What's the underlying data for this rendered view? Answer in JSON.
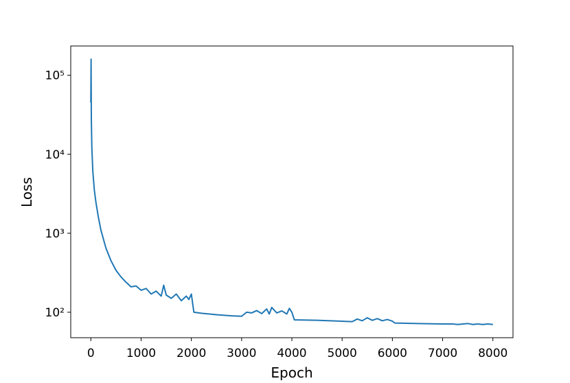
{
  "chart_data": {
    "type": "line",
    "xlabel": "Epoch",
    "ylabel": "Loss",
    "yscale": "log",
    "xlim": [
      -400,
      8400
    ],
    "xticks": [
      0,
      1000,
      2000,
      3000,
      4000,
      5000,
      6000,
      7000,
      8000
    ],
    "ylim": [
      47.6,
      235000
    ],
    "yticks": [
      {
        "value": 100,
        "label": "10²"
      },
      {
        "value": 1000,
        "label": "10³"
      },
      {
        "value": 10000,
        "label": "10⁴"
      },
      {
        "value": 100000,
        "label": "10⁵"
      }
    ],
    "x": [
      0,
      5,
      10,
      20,
      40,
      70,
      100,
      150,
      200,
      300,
      400,
      500,
      600,
      700,
      800,
      900,
      1000,
      1100,
      1200,
      1300,
      1400,
      1450,
      1500,
      1600,
      1700,
      1800,
      1900,
      1950,
      2000,
      2050,
      2200,
      2500,
      2800,
      3000,
      3100,
      3200,
      3300,
      3400,
      3500,
      3550,
      3600,
      3700,
      3800,
      3900,
      3950,
      4000,
      4050,
      4500,
      5000,
      5200,
      5300,
      5400,
      5500,
      5600,
      5700,
      5800,
      5900,
      6000,
      6050,
      6500,
      7000,
      7200,
      7300,
      7500,
      7600,
      7700,
      7800,
      7900,
      8000
    ],
    "series": [
      {
        "color": "#1f77b4",
        "values": [
          45000,
          160000,
          28000,
          12000,
          6000,
          3500,
          2500,
          1600,
          1100,
          650,
          450,
          340,
          280,
          240,
          210,
          215,
          190,
          200,
          170,
          185,
          160,
          220,
          165,
          150,
          170,
          140,
          160,
          145,
          170,
          100,
          97,
          93,
          90,
          89,
          100,
          98,
          105,
          96,
          110,
          95,
          115,
          98,
          104,
          95,
          112,
          100,
          80,
          79,
          77,
          76,
          82,
          78,
          85,
          79,
          83,
          78,
          81,
          77,
          73,
          72,
          71,
          71,
          70,
          72,
          70,
          71,
          70,
          71,
          70
        ]
      }
    ]
  }
}
